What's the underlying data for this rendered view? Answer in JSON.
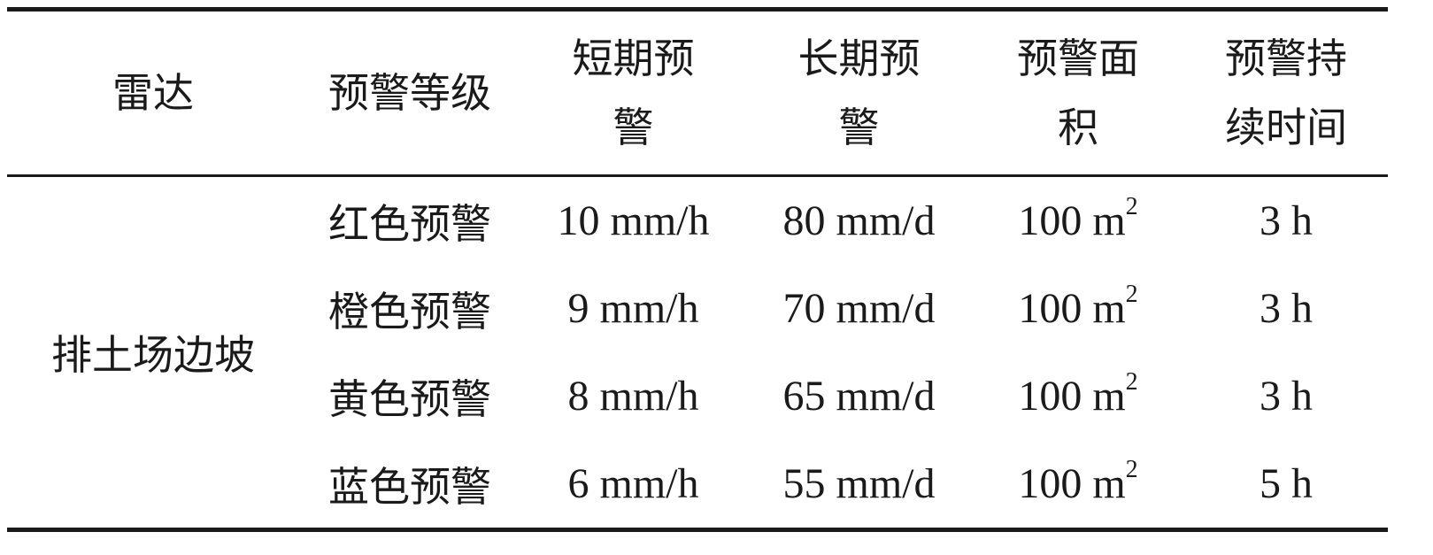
{
  "headers": [
    "雷达",
    "预警等级",
    "短期预警",
    "长期预警",
    "预警面积",
    "预警持续时间"
  ],
  "header_lines": [
    [
      "雷达"
    ],
    [
      "预警等级"
    ],
    [
      "短期预",
      "警"
    ],
    [
      "长期预",
      "警"
    ],
    [
      "预警面",
      "积"
    ],
    [
      "预警持",
      "续时间"
    ]
  ],
  "group": "排土场边坡",
  "rows": [
    {
      "level": "红色预警",
      "short": "10 mm/h",
      "long": "80 mm/d",
      "area": "100 m",
      "area_exp": "2",
      "duration": "3 h"
    },
    {
      "level": "橙色预警",
      "short": "9 mm/h",
      "long": "70 mm/d",
      "area": "100 m",
      "area_exp": "2",
      "duration": "3 h"
    },
    {
      "level": "黄色预警",
      "short": "8 mm/h",
      "long": "65 mm/d",
      "area": "100 m",
      "area_exp": "2",
      "duration": "3 h"
    },
    {
      "level": "蓝色预警",
      "short": "6 mm/h",
      "long": "55 mm/d",
      "area": "100 m",
      "area_exp": "2",
      "duration": "5 h"
    }
  ]
}
